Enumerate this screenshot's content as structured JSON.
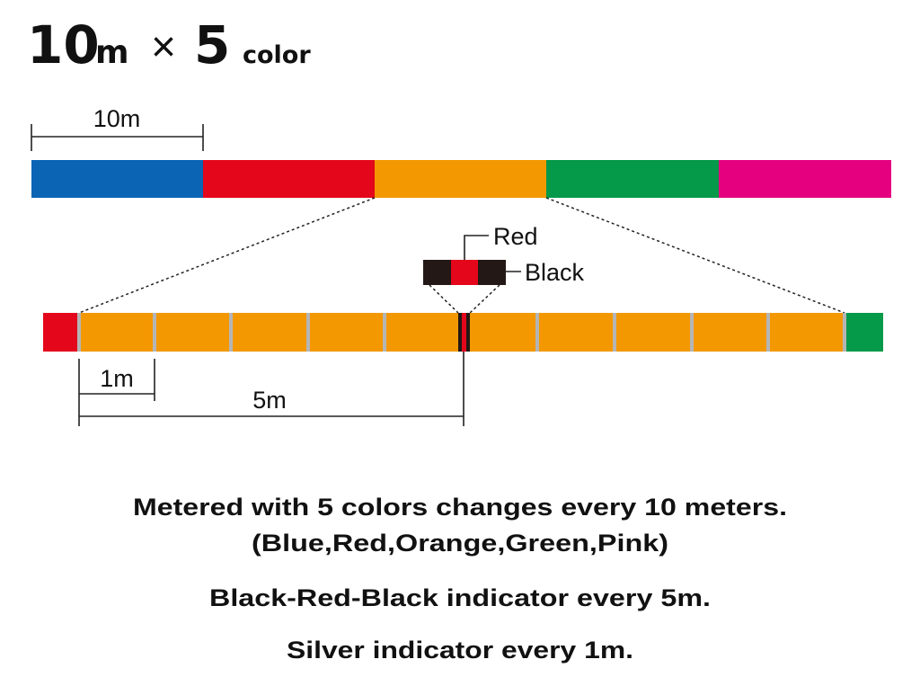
{
  "title": {
    "length": "10",
    "length_unit": "m",
    "times": "×",
    "count": "5",
    "count_unit": "color"
  },
  "top_bar": {
    "dimension_label": "10m"
  },
  "inset": {
    "middle_label": "Red",
    "side_label": "Black"
  },
  "bottom_bar": {
    "short_dimension_label": "1m",
    "long_dimension_label": "5m"
  },
  "captions": [
    "Metered with 5 colors changes every 10 meters.",
    "(Blue,Red,Orange,Green,Pink)",
    "Black-Red-Black indicator every 5m.",
    "Silver indicator every 1m."
  ]
}
